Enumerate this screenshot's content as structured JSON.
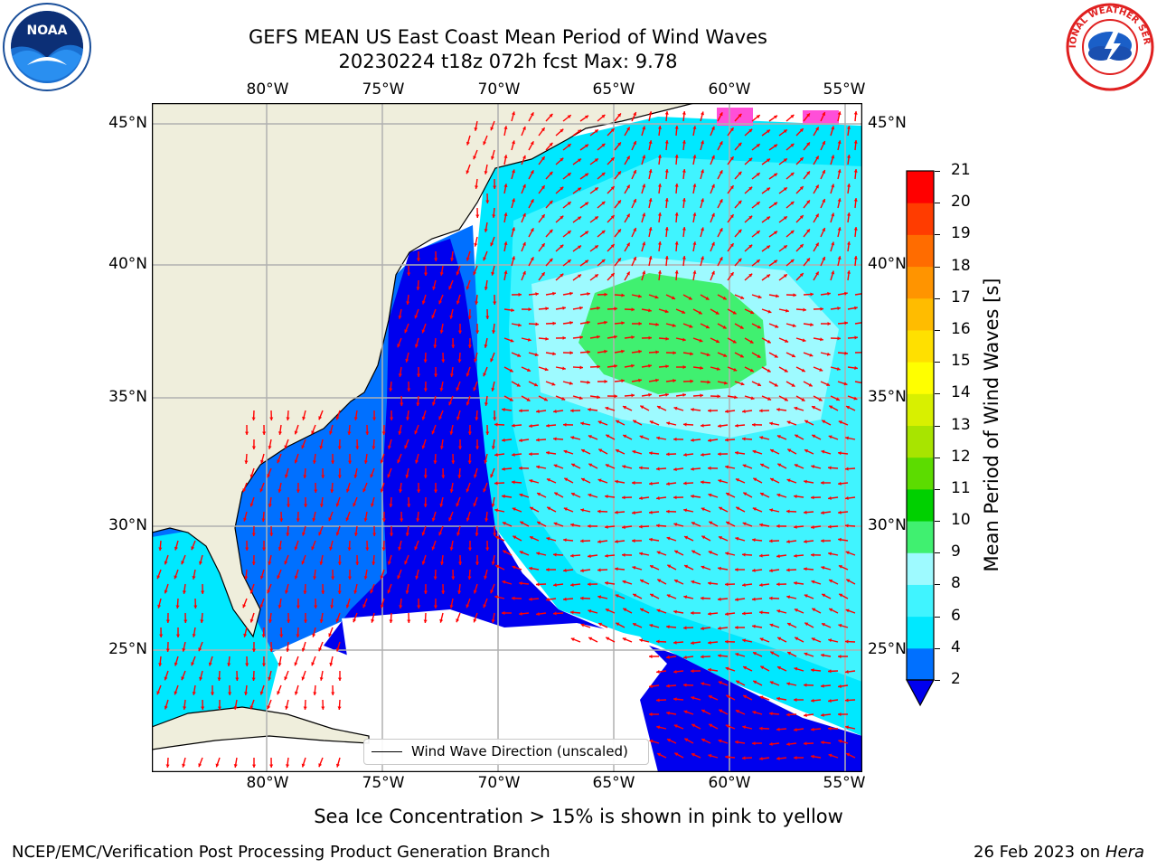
{
  "title": {
    "line1": "GEFS MEAN US East Coast Mean Period of Wind Waves",
    "line2": "20230224 t18z 072h fcst   Max: 9.78"
  },
  "map": {
    "lon_ticks": [
      "80°W",
      "75°W",
      "70°W",
      "65°W",
      "60°W",
      "55°W"
    ],
    "lat_ticks": [
      "45°N",
      "40°N",
      "35°N",
      "30°N",
      "25°N"
    ],
    "land_color": "#efeedc",
    "grid_color": "#b0b0b0",
    "arrow_color": "#ff0000"
  },
  "legend": {
    "label": "Wind Wave Direction (unscaled)"
  },
  "colorbar": {
    "label": "Mean Period of Wind Waves [s]",
    "ticks": [
      "2",
      "4",
      "6",
      "8",
      "9",
      "10",
      "11",
      "12",
      "13",
      "14",
      "15",
      "16",
      "17",
      "18",
      "19",
      "20",
      "21"
    ],
    "colors": [
      "#0070ff",
      "#00e8ff",
      "#40f4ff",
      "#9efaff",
      "#40f070",
      "#00d000",
      "#5cdc00",
      "#a8e400",
      "#d8f000",
      "#ffff00",
      "#ffe000",
      "#ffbc00",
      "#ff9400",
      "#ff6c00",
      "#ff3c00",
      "#ff0000"
    ],
    "extend_color": "#0000ee"
  },
  "ice_note": "Sea Ice Concentration > 15% is shown in pink to yellow",
  "footer": {
    "left": "NCEP/EMC/Verification Post Processing Product Generation Branch",
    "date": "26 Feb 2023 on",
    "host": "Hera"
  },
  "logos": {
    "left": "NOAA",
    "right": "NATIONAL WEATHER SERVICE"
  }
}
